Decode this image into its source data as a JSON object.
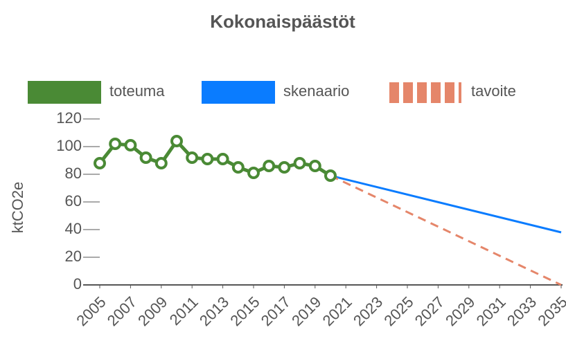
{
  "chart_data": {
    "type": "line",
    "title": "Kokonaispäästöt",
    "ylabel": "ktCO2e",
    "xlim": [
      2005,
      2035
    ],
    "xticks": [
      2005,
      2007,
      2009,
      2011,
      2013,
      2015,
      2017,
      2019,
      2021,
      2023,
      2025,
      2027,
      2029,
      2031,
      2033,
      2035
    ],
    "ylim": [
      0,
      120
    ],
    "yticks": [
      0,
      20,
      40,
      60,
      80,
      100,
      120
    ],
    "series": [
      {
        "name": "toteuma",
        "color": "#4a8a35",
        "markers": true,
        "dashed": false,
        "x": [
          2005,
          2006,
          2007,
          2008,
          2009,
          2010,
          2011,
          2012,
          2013,
          2014,
          2015,
          2016,
          2017,
          2018,
          2019,
          2020
        ],
        "values": [
          88,
          102,
          101,
          92,
          88,
          104,
          92,
          91,
          91,
          85,
          81,
          86,
          85,
          88,
          86,
          79
        ]
      },
      {
        "name": "skenaario",
        "color": "#0a7cff",
        "markers": false,
        "dashed": false,
        "x": [
          2020,
          2035
        ],
        "values": [
          79,
          38
        ]
      },
      {
        "name": "tavoite",
        "color": "#e5866a",
        "markers": false,
        "dashed": true,
        "x": [
          2020,
          2035
        ],
        "values": [
          79,
          0
        ]
      }
    ]
  }
}
